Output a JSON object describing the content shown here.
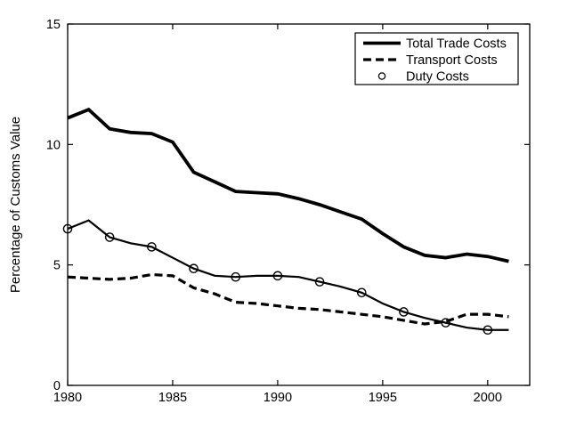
{
  "figure": {
    "background": "#ffffff",
    "line_color": "#000000",
    "text_color": "#000000"
  },
  "chart_data": {
    "type": "line",
    "title": "",
    "xlabel": "",
    "ylabel": "Percentage of Customs Value",
    "xlim": [
      1980,
      2002
    ],
    "ylim": [
      0,
      15
    ],
    "xticks": [
      "1980",
      "1985",
      "1990",
      "1995",
      "2000"
    ],
    "xtick_values": [
      1980,
      1985,
      1990,
      1995,
      2000
    ],
    "yticks": [
      "0",
      "5",
      "10",
      "15"
    ],
    "ytick_values": [
      0,
      5,
      10,
      15
    ],
    "grid": false,
    "legend_position": "top-right",
    "x": [
      1980,
      1981,
      1982,
      1983,
      1984,
      1985,
      1986,
      1987,
      1988,
      1989,
      1990,
      1991,
      1992,
      1993,
      1994,
      1995,
      1996,
      1997,
      1998,
      1999,
      2000,
      2001
    ],
    "series": [
      {
        "name": "Total Trade Costs",
        "style": "solid-thick",
        "values": [
          11.1,
          11.45,
          10.65,
          10.5,
          10.45,
          10.1,
          8.85,
          8.45,
          8.05,
          8.0,
          7.95,
          7.75,
          7.5,
          7.2,
          6.9,
          6.3,
          5.75,
          5.4,
          5.3,
          5.45,
          5.35,
          5.15
        ]
      },
      {
        "name": "Transport Costs",
        "style": "dashed",
        "values": [
          4.5,
          4.45,
          4.4,
          4.45,
          4.6,
          4.55,
          4.05,
          3.8,
          3.45,
          3.4,
          3.3,
          3.2,
          3.15,
          3.05,
          2.95,
          2.85,
          2.7,
          2.55,
          2.65,
          2.95,
          2.95,
          2.85
        ]
      },
      {
        "name": "Duty Costs",
        "style": "solid-markers",
        "marker": "circle",
        "marker_x": [
          1980,
          1982,
          1984,
          1986,
          1988,
          1990,
          1992,
          1994,
          1996,
          1998,
          2000
        ],
        "values": [
          6.5,
          6.85,
          6.15,
          5.9,
          5.75,
          5.3,
          4.85,
          4.55,
          4.5,
          4.55,
          4.55,
          4.5,
          4.3,
          4.1,
          3.85,
          3.4,
          3.05,
          2.8,
          2.6,
          2.4,
          2.3,
          2.3
        ]
      }
    ]
  },
  "legend": {
    "entries": [
      {
        "label": "Total Trade Costs",
        "sample": "solid-thick"
      },
      {
        "label": "Transport Costs",
        "sample": "dashed"
      },
      {
        "label": "Duty Costs",
        "sample": "circle"
      }
    ]
  }
}
